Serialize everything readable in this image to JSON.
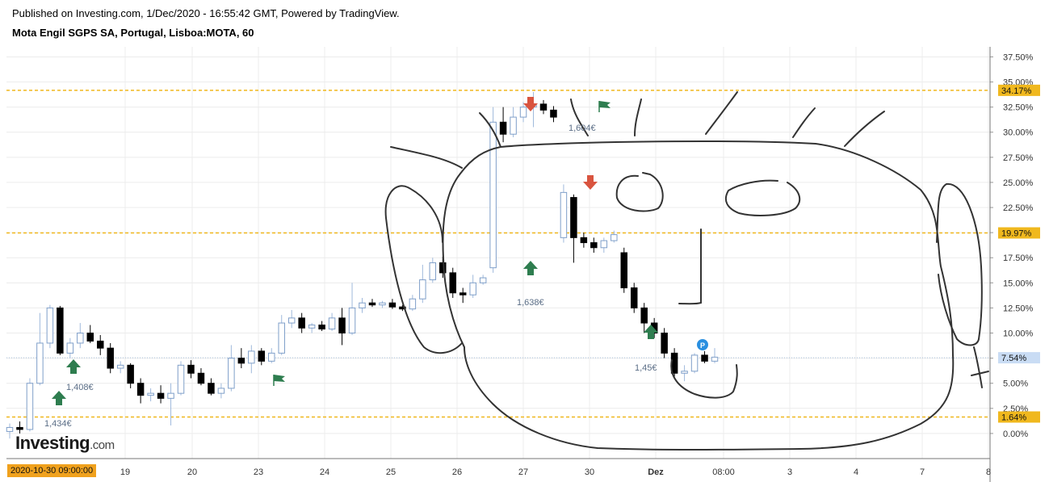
{
  "header": {
    "published": "Published on Investing.com, 1/Dec/2020 - 16:55:42 GMT, Powered by TradingView.",
    "symbol": "Mota Engil SGPS SA, Portugal, Lisboa:MOTA, 60"
  },
  "logo": {
    "main": "Investing",
    "suffix": ".com"
  },
  "date_marker": "2020-10-30 09:00:00",
  "colors": {
    "accent": "#f0b81e",
    "up_candle": "#b8cce6",
    "down_candle": "#000000",
    "arrow_up": "#2e7d4f",
    "arrow_down": "#d9543f",
    "current": "#c9dcf4"
  },
  "chart_data": {
    "type": "candlestick",
    "title": "Mota Engil SGPS SA, Portugal, Lisboa:MOTA, 60",
    "y_unit": "%",
    "ylim": [
      -2.5,
      38.5
    ],
    "y_ticks": [
      "37.50%",
      "35.00%",
      "32.50%",
      "30.00%",
      "27.50%",
      "25.00%",
      "22.50%",
      "20.00%",
      "17.50%",
      "15.00%",
      "12.50%",
      "10.00%",
      "7.50%",
      "5.00%",
      "2.50%",
      "0.00%"
    ],
    "x_ticks": [
      "19",
      "20",
      "23",
      "24",
      "25",
      "26",
      "27",
      "30",
      "Dez",
      "08:00",
      "3",
      "4",
      "7",
      "8"
    ],
    "grid": true,
    "price_levels": [
      {
        "value": 34.17,
        "label": "34.17%",
        "style": "dashed"
      },
      {
        "value": 19.97,
        "label": "19.97%",
        "style": "dashed"
      },
      {
        "value": 1.64,
        "label": "1.64%",
        "style": "dashed"
      }
    ],
    "current_price": {
      "value": 7.54,
      "label": "7.54%"
    },
    "annotations": [
      {
        "text": "1,434€",
        "x": "16",
        "y": 0.8
      },
      {
        "text": "1,408€",
        "x": "18",
        "y": 4.8
      },
      {
        "text": "1,638€",
        "x": "26",
        "y": 13.5
      },
      {
        "text": "1,604€",
        "x": "27",
        "y": 30.8
      },
      {
        "text": "1,45€",
        "x": "Dez",
        "y": 6.5
      }
    ],
    "candles": [
      {
        "o": 0.2,
        "h": 1.0,
        "l": -0.5,
        "c": 0.6
      },
      {
        "o": 0.6,
        "h": 1.2,
        "l": 0.0,
        "c": 0.4
      },
      {
        "o": 0.4,
        "h": 5.5,
        "l": 0.2,
        "c": 5.0
      },
      {
        "o": 5.0,
        "h": 12.0,
        "l": 4.8,
        "c": 9.0
      },
      {
        "o": 9.0,
        "h": 12.8,
        "l": 8.5,
        "c": 12.5
      },
      {
        "o": 12.5,
        "h": 12.7,
        "l": 7.8,
        "c": 8.0
      },
      {
        "o": 8.0,
        "h": 9.5,
        "l": 7.5,
        "c": 9.0
      },
      {
        "o": 9.0,
        "h": 11.0,
        "l": 8.5,
        "c": 10.0
      },
      {
        "o": 10.0,
        "h": 10.8,
        "l": 9.0,
        "c": 9.2
      },
      {
        "o": 9.2,
        "h": 9.8,
        "l": 7.8,
        "c": 8.5
      },
      {
        "o": 8.5,
        "h": 9.0,
        "l": 6.0,
        "c": 6.5
      },
      {
        "o": 6.5,
        "h": 7.2,
        "l": 6.0,
        "c": 6.8
      },
      {
        "o": 6.8,
        "h": 7.0,
        "l": 4.5,
        "c": 5.0
      },
      {
        "o": 5.0,
        "h": 5.5,
        "l": 3.0,
        "c": 3.8
      },
      {
        "o": 3.8,
        "h": 4.5,
        "l": 3.2,
        "c": 4.0
      },
      {
        "o": 4.0,
        "h": 4.8,
        "l": 3.0,
        "c": 3.5
      },
      {
        "o": 3.5,
        "h": 5.0,
        "l": 0.8,
        "c": 4.0
      },
      {
        "o": 4.0,
        "h": 7.2,
        "l": 3.8,
        "c": 6.8
      },
      {
        "o": 6.8,
        "h": 7.3,
        "l": 5.5,
        "c": 6.0
      },
      {
        "o": 6.0,
        "h": 6.5,
        "l": 4.8,
        "c": 5.0
      },
      {
        "o": 5.0,
        "h": 5.5,
        "l": 3.8,
        "c": 4.0
      },
      {
        "o": 4.0,
        "h": 5.0,
        "l": 3.5,
        "c": 4.5
      },
      {
        "o": 4.5,
        "h": 8.8,
        "l": 4.2,
        "c": 7.5
      },
      {
        "o": 7.5,
        "h": 8.5,
        "l": 6.5,
        "c": 7.0
      },
      {
        "o": 7.0,
        "h": 8.8,
        "l": 6.0,
        "c": 8.2
      },
      {
        "o": 8.2,
        "h": 8.5,
        "l": 6.8,
        "c": 7.2
      },
      {
        "o": 7.2,
        "h": 8.5,
        "l": 7.0,
        "c": 8.0
      },
      {
        "o": 8.0,
        "h": 11.8,
        "l": 7.8,
        "c": 11.0
      },
      {
        "o": 11.0,
        "h": 12.3,
        "l": 10.5,
        "c": 11.5
      },
      {
        "o": 11.5,
        "h": 12.0,
        "l": 10.0,
        "c": 10.5
      },
      {
        "o": 10.5,
        "h": 11.0,
        "l": 10.0,
        "c": 10.8
      },
      {
        "o": 10.8,
        "h": 11.2,
        "l": 10.2,
        "c": 10.4
      },
      {
        "o": 10.4,
        "h": 12.0,
        "l": 10.2,
        "c": 11.5
      },
      {
        "o": 11.5,
        "h": 12.5,
        "l": 8.8,
        "c": 10.0
      },
      {
        "o": 10.0,
        "h": 15.0,
        "l": 9.8,
        "c": 12.5
      },
      {
        "o": 12.5,
        "h": 13.5,
        "l": 12.0,
        "c": 13.0
      },
      {
        "o": 13.0,
        "h": 13.4,
        "l": 12.6,
        "c": 12.8
      },
      {
        "o": 12.8,
        "h": 13.2,
        "l": 12.5,
        "c": 13.0
      },
      {
        "o": 13.0,
        "h": 13.4,
        "l": 12.4,
        "c": 12.6
      },
      {
        "o": 12.6,
        "h": 12.8,
        "l": 12.2,
        "c": 12.4
      },
      {
        "o": 12.4,
        "h": 13.8,
        "l": 12.2,
        "c": 13.4
      },
      {
        "o": 13.4,
        "h": 16.8,
        "l": 13.0,
        "c": 15.3
      },
      {
        "o": 15.3,
        "h": 17.5,
        "l": 15.0,
        "c": 17.0
      },
      {
        "o": 17.0,
        "h": 17.6,
        "l": 15.5,
        "c": 16.0
      },
      {
        "o": 16.0,
        "h": 16.5,
        "l": 13.5,
        "c": 14.0
      },
      {
        "o": 14.0,
        "h": 14.5,
        "l": 13.0,
        "c": 13.8
      },
      {
        "o": 13.8,
        "h": 15.8,
        "l": 13.5,
        "c": 15.0
      },
      {
        "o": 15.0,
        "h": 15.8,
        "l": 14.8,
        "c": 15.5
      },
      {
        "o": 16.5,
        "h": 32.5,
        "l": 16.0,
        "c": 31.0
      },
      {
        "o": 31.0,
        "h": 32.5,
        "l": 29.0,
        "c": 29.8
      },
      {
        "o": 29.8,
        "h": 32.5,
        "l": 29.5,
        "c": 31.5
      },
      {
        "o": 31.5,
        "h": 33.0,
        "l": 31.0,
        "c": 32.5
      },
      {
        "o": 32.5,
        "h": 34.0,
        "l": 30.5,
        "c": 32.8
      },
      {
        "o": 32.8,
        "h": 33.2,
        "l": 31.8,
        "c": 32.2
      },
      {
        "o": 32.2,
        "h": 32.6,
        "l": 31.0,
        "c": 31.5
      },
      {
        "o": 19.5,
        "h": 24.8,
        "l": 19.0,
        "c": 24.0
      },
      {
        "o": 23.5,
        "h": 23.8,
        "l": 17.0,
        "c": 19.5
      },
      {
        "o": 19.5,
        "h": 20.0,
        "l": 18.5,
        "c": 19.0
      },
      {
        "o": 19.0,
        "h": 19.5,
        "l": 18.0,
        "c": 18.5
      },
      {
        "o": 18.5,
        "h": 19.5,
        "l": 18.0,
        "c": 19.2
      },
      {
        "o": 19.2,
        "h": 20.2,
        "l": 19.0,
        "c": 19.8
      },
      {
        "o": 18.0,
        "h": 18.5,
        "l": 14.0,
        "c": 14.5
      },
      {
        "o": 14.5,
        "h": 15.0,
        "l": 12.0,
        "c": 12.5
      },
      {
        "o": 12.5,
        "h": 13.0,
        "l": 10.0,
        "c": 11.0
      },
      {
        "o": 11.0,
        "h": 11.5,
        "l": 9.5,
        "c": 10.0
      },
      {
        "o": 10.0,
        "h": 10.5,
        "l": 7.5,
        "c": 8.0
      },
      {
        "o": 8.0,
        "h": 8.5,
        "l": 5.5,
        "c": 6.0
      },
      {
        "o": 6.0,
        "h": 6.8,
        "l": 5.2,
        "c": 6.2
      },
      {
        "o": 6.2,
        "h": 8.0,
        "l": 6.0,
        "c": 7.8
      },
      {
        "o": 7.8,
        "h": 8.2,
        "l": 7.0,
        "c": 7.2
      },
      {
        "o": 7.2,
        "h": 8.5,
        "l": 7.0,
        "c": 7.6
      }
    ]
  }
}
